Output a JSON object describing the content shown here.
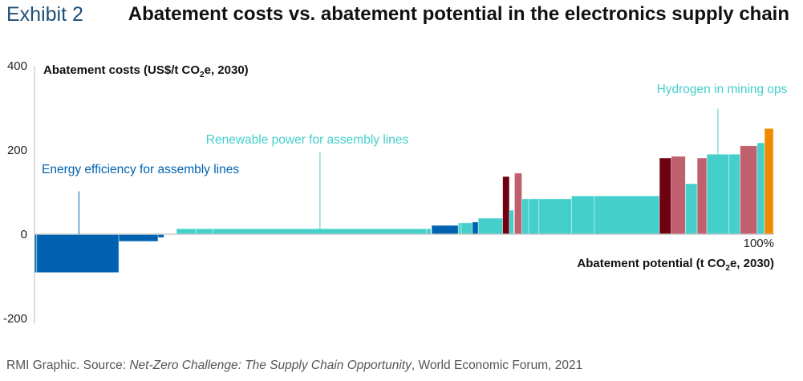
{
  "header": {
    "exhibit": "Exhibit 2",
    "title": "Abatement costs vs. abatement potential in the electronics supply chain"
  },
  "footer": {
    "prefix": "RMI Graphic. Source: ",
    "source_title": "Net-Zero Challenge: The Supply Chain Opportunity",
    "suffix": ", World Economic Forum, 2021"
  },
  "colors": {
    "energy_efficiency": "#0062b0",
    "renewable": "#44cfcb",
    "dark_red": "#6e0010",
    "rose": "#c0606e",
    "orange": "#ef8a00",
    "axis": "#c8c8c8"
  },
  "chart_data": {
    "type": "bar",
    "subtype": "marginal-abatement-cost-curve",
    "title": "Abatement costs vs. abatement potential in the electronics supply chain",
    "ylabel_main": "Abatement costs (US$/t CO",
    "ylabel_sub": "2",
    "ylabel_tail": "e, 2030)",
    "xlabel_main": "Abatement potential (t CO",
    "xlabel_sub": "2",
    "xlabel_tail": "e, 2030)",
    "x_end_label": "100%",
    "ylim": [
      -200,
      400
    ],
    "yticks": [
      400,
      200,
      0,
      -200
    ],
    "xlim": [
      0,
      100
    ],
    "grid": false,
    "annotations": [
      {
        "text": "Energy efficiency for assembly lines",
        "color_key": "energy_efficiency",
        "x": 6.0,
        "y_text": 145,
        "y_line_top": 102
      },
      {
        "text": "Renewable power for assembly lines",
        "color_key": "renewable",
        "x": 38.6,
        "y_text": 215,
        "y_line_top": 195
      },
      {
        "text": "Hydrogen in mining ops",
        "color_key": "renewable",
        "x": 92.4,
        "y_text": 335,
        "y_line_top": 298
      }
    ],
    "bars": [
      {
        "x0": 0.0,
        "x1": 0.3,
        "value": -91,
        "color_key": "energy_efficiency"
      },
      {
        "x0": 0.3,
        "x1": 11.4,
        "value": -91,
        "color_key": "energy_efficiency"
      },
      {
        "x0": 11.4,
        "x1": 16.7,
        "value": -17,
        "color_key": "energy_efficiency"
      },
      {
        "x0": 16.7,
        "x1": 17.5,
        "value": -8,
        "color_key": "energy_efficiency"
      },
      {
        "x0": 19.2,
        "x1": 21.8,
        "value": 13,
        "color_key": "renewable"
      },
      {
        "x0": 21.8,
        "x1": 24.1,
        "value": 13,
        "color_key": "renewable"
      },
      {
        "x0": 24.1,
        "x1": 53.0,
        "value": 13,
        "color_key": "renewable"
      },
      {
        "x0": 53.0,
        "x1": 53.6,
        "value": 13,
        "color_key": "renewable"
      },
      {
        "x0": 53.7,
        "x1": 57.3,
        "value": 21,
        "color_key": "energy_efficiency"
      },
      {
        "x0": 57.3,
        "x1": 57.7,
        "value": 27,
        "color_key": "renewable"
      },
      {
        "x0": 57.7,
        "x1": 59.2,
        "value": 27,
        "color_key": "renewable"
      },
      {
        "x0": 59.2,
        "x1": 60.0,
        "value": 29,
        "color_key": "energy_efficiency"
      },
      {
        "x0": 60.0,
        "x1": 63.3,
        "value": 38,
        "color_key": "renewable"
      },
      {
        "x0": 63.3,
        "x1": 64.2,
        "value": 137,
        "color_key": "dark_red"
      },
      {
        "x0": 64.2,
        "x1": 64.8,
        "value": 57,
        "color_key": "renewable"
      },
      {
        "x0": 64.9,
        "x1": 65.9,
        "value": 145,
        "color_key": "rose"
      },
      {
        "x0": 65.9,
        "x1": 66.8,
        "value": 84,
        "color_key": "renewable"
      },
      {
        "x0": 66.8,
        "x1": 68.2,
        "value": 84,
        "color_key": "renewable"
      },
      {
        "x0": 68.2,
        "x1": 72.6,
        "value": 84,
        "color_key": "renewable"
      },
      {
        "x0": 72.6,
        "x1": 75.7,
        "value": 91,
        "color_key": "renewable"
      },
      {
        "x0": 75.7,
        "x1": 84.5,
        "value": 91,
        "color_key": "renewable"
      },
      {
        "x0": 84.5,
        "x1": 86.1,
        "value": 181,
        "color_key": "dark_red"
      },
      {
        "x0": 86.1,
        "x1": 88.0,
        "value": 185,
        "color_key": "rose"
      },
      {
        "x0": 88.0,
        "x1": 89.6,
        "value": 120,
        "color_key": "renewable"
      },
      {
        "x0": 89.6,
        "x1": 90.9,
        "value": 181,
        "color_key": "rose"
      },
      {
        "x0": 90.9,
        "x1": 93.9,
        "value": 190,
        "color_key": "renewable"
      },
      {
        "x0": 93.9,
        "x1": 95.4,
        "value": 190,
        "color_key": "renewable"
      },
      {
        "x0": 95.4,
        "x1": 97.7,
        "value": 210,
        "color_key": "rose"
      },
      {
        "x0": 97.7,
        "x1": 98.7,
        "value": 217,
        "color_key": "renewable"
      },
      {
        "x0": 98.7,
        "x1": 99.9,
        "value": 251,
        "color_key": "orange"
      }
    ]
  }
}
